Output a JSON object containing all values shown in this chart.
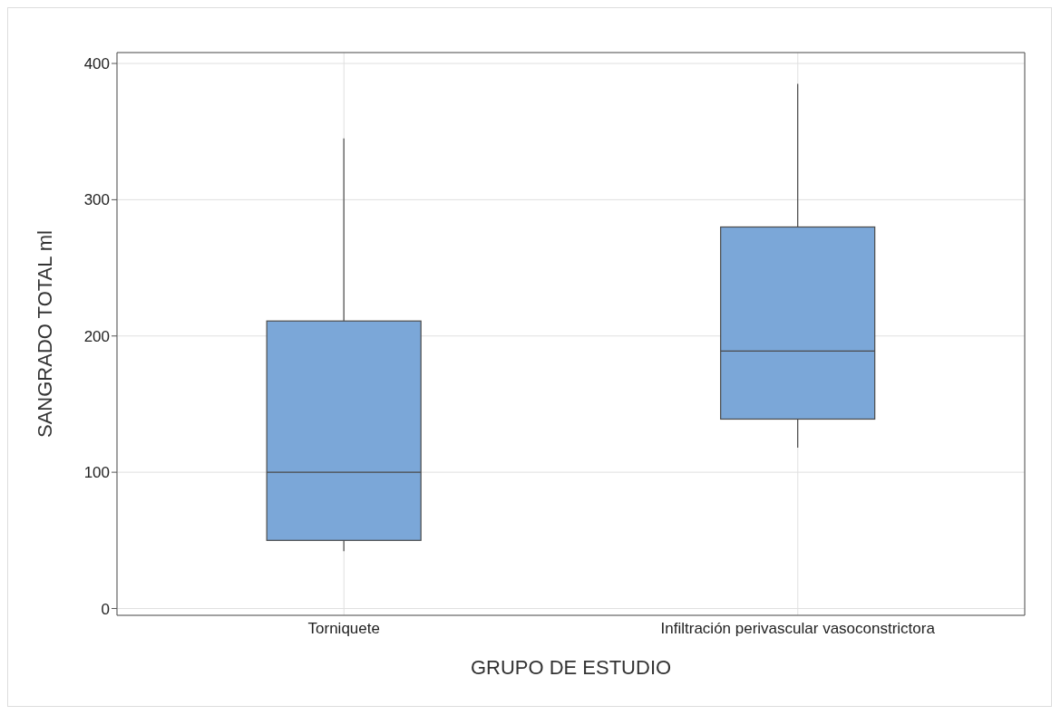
{
  "chart_data": {
    "type": "box",
    "xlabel": "GRUPO DE ESTUDIO",
    "ylabel": "SANGRADO TOTAL ml",
    "categories": [
      "Torniquete",
      "Infiltración perivascular vasoconstrictora"
    ],
    "boxes": [
      {
        "low": 42,
        "q1": 50,
        "median": 100,
        "q3": 211,
        "high": 345
      },
      {
        "low": 118,
        "q1": 139,
        "median": 189,
        "q3": 280,
        "high": 385
      }
    ],
    "color": "#7ba7d8",
    "ylim": [
      -5,
      408
    ],
    "yticks": [
      0,
      100,
      200,
      300,
      400
    ],
    "grid": true
  }
}
